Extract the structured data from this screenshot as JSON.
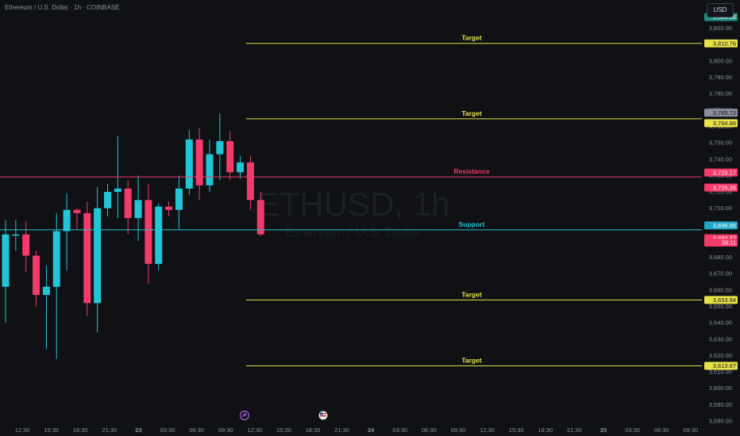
{
  "header": {
    "title": "Ethereum / U.S. Dollar · 1h · COINBASE",
    "currency_button": "USD"
  },
  "watermark": {
    "symbol": "ETHUSD, 1h",
    "name": "Ethereum / U.S. Dollar"
  },
  "colors": {
    "background": "#0f1115",
    "up": "#22c5d6",
    "down": "#f23a6b",
    "target": "#e7e24a",
    "resistance": "#f23a6b",
    "support": "#22c5d6"
  },
  "chart_data": {
    "type": "candlestick",
    "symbol": "ETHUSD",
    "interval": "1h",
    "exchange": "COINBASE",
    "ylim": [
      3580,
      3830
    ],
    "y_ticks": [
      3580,
      3590,
      3600,
      3610,
      3620,
      3630,
      3640,
      3650,
      3660,
      3670,
      3680,
      3690,
      3700,
      3710,
      3720,
      3730,
      3740,
      3750,
      3760,
      3770,
      3780,
      3790,
      3800,
      3810,
      3820,
      3830
    ],
    "x_tick_labels": [
      "12:30",
      "15:30",
      "18:30",
      "21:30",
      "23",
      "03:30",
      "06:30",
      "09:30",
      "12:30",
      "15:30",
      "18:30",
      "21:30",
      "24",
      "03:30",
      "06:30",
      "09:30",
      "12:30",
      "15:30",
      "18:30",
      "21:30",
      "25",
      "03:30",
      "06:30",
      "09:30"
    ],
    "candles": [
      {
        "o": 3662,
        "h": 3703,
        "l": 3640,
        "c": 3694
      },
      {
        "o": 3694,
        "h": 3703,
        "l": 3684,
        "c": 3694
      },
      {
        "o": 3694,
        "h": 3702,
        "l": 3671,
        "c": 3681
      },
      {
        "o": 3681,
        "h": 3684,
        "l": 3650,
        "c": 3657
      },
      {
        "o": 3657,
        "h": 3675,
        "l": 3624,
        "c": 3662
      },
      {
        "o": 3662,
        "h": 3707,
        "l": 3618,
        "c": 3696
      },
      {
        "o": 3696,
        "h": 3719,
        "l": 3672,
        "c": 3709
      },
      {
        "o": 3709,
        "h": 3710,
        "l": 3697,
        "c": 3707
      },
      {
        "o": 3707,
        "h": 3714,
        "l": 3644,
        "c": 3652
      },
      {
        "o": 3652,
        "h": 3723,
        "l": 3634,
        "c": 3710
      },
      {
        "o": 3710,
        "h": 3725,
        "l": 3705,
        "c": 3720
      },
      {
        "o": 3720,
        "h": 3754,
        "l": 3704,
        "c": 3722
      },
      {
        "o": 3722,
        "h": 3727,
        "l": 3694,
        "c": 3704
      },
      {
        "o": 3704,
        "h": 3730,
        "l": 3690,
        "c": 3715
      },
      {
        "o": 3715,
        "h": 3725,
        "l": 3664,
        "c": 3676
      },
      {
        "o": 3676,
        "h": 3713,
        "l": 3672,
        "c": 3711
      },
      {
        "o": 3711,
        "h": 3714,
        "l": 3705,
        "c": 3709
      },
      {
        "o": 3709,
        "h": 3730,
        "l": 3697,
        "c": 3722
      },
      {
        "o": 3722,
        "h": 3758,
        "l": 3718,
        "c": 3752
      },
      {
        "o": 3752,
        "h": 3759,
        "l": 3715,
        "c": 3724
      },
      {
        "o": 3724,
        "h": 3752,
        "l": 3720,
        "c": 3743
      },
      {
        "o": 3743,
        "h": 3768,
        "l": 3727,
        "c": 3751
      },
      {
        "o": 3751,
        "h": 3757,
        "l": 3727,
        "c": 3732
      },
      {
        "o": 3732,
        "h": 3742,
        "l": 3728,
        "c": 3738
      },
      {
        "o": 3738,
        "h": 3742,
        "l": 3709,
        "c": 3715
      },
      {
        "o": 3715,
        "h": 3720,
        "l": 3693,
        "c": 3694
      }
    ],
    "levels": [
      {
        "label": "Target",
        "price": 3810.76,
        "kind": "target"
      },
      {
        "label": "Target",
        "price": 3764.66,
        "kind": "target"
      },
      {
        "label": "Resistance",
        "price": 3729.17,
        "kind": "resistance"
      },
      {
        "label": "Support",
        "price": 3696.85,
        "kind": "support"
      },
      {
        "label": "Target",
        "price": 3653.94,
        "kind": "target"
      },
      {
        "label": "Target",
        "price": 3613.67,
        "kind": "target"
      }
    ],
    "price_tags": [
      {
        "text": "3,826.86",
        "price": 3826.86,
        "bg": "#1f8f84",
        "fg": "#ffffff"
      },
      {
        "text": "3,810.76",
        "price": 3810.76,
        "bg": "#e7e24a",
        "fg": "#111111"
      },
      {
        "text": "3,765.72",
        "price": 3765.72,
        "bg": "#8a8e99",
        "fg": "#111111",
        "offset": -1
      },
      {
        "text": "3,764.66",
        "price": 3764.66,
        "bg": "#e7e24a",
        "fg": "#111111",
        "offset": 1
      },
      {
        "text": "3,729.17",
        "price": 3729.17,
        "bg": "#f23a6b",
        "fg": "#ffffff",
        "offset": -1
      },
      {
        "text": "3,725.28",
        "price": 3725.28,
        "bg": "#f23a6b",
        "fg": "#ffffff",
        "offset": 1
      },
      {
        "text": "3,696.85",
        "price": 3696.85,
        "bg": "#22a7c9",
        "fg": "#ffffff",
        "offset": -1
      },
      {
        "text": "3,694.32",
        "price": 3694.32,
        "bg": "#f23a6b",
        "fg": "#ffffff",
        "offset": 1
      },
      {
        "text": "38:11",
        "price": 3694.32,
        "bg": "#f23a6b",
        "fg": "#ffffff",
        "offset": 2
      },
      {
        "text": "3,653.94",
        "price": 3653.94,
        "bg": "#e7e24a",
        "fg": "#111111"
      },
      {
        "text": "3,613.67",
        "price": 3613.67,
        "bg": "#e7e24a",
        "fg": "#111111"
      }
    ]
  }
}
